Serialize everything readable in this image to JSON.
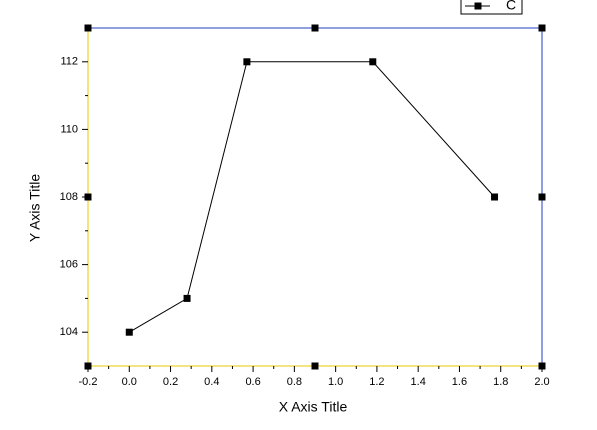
{
  "chart_data": {
    "type": "line",
    "x_label": "X Axis Title",
    "y_label": "Y Axis Title",
    "x": [
      0,
      0.28,
      0.57,
      1.18,
      1.77
    ],
    "series": [
      {
        "name": "C",
        "color": "#000000",
        "values": [
          104,
          105,
          112,
          112,
          108
        ]
      }
    ],
    "xlim": [
      -0.2,
      2.0
    ],
    "xticks": [
      -0.2,
      {
        "value": 0,
        "label": "0.0"
      },
      0.2,
      0.4,
      0.6,
      0.8,
      {
        "value": 1,
        "label": "1.0"
      },
      1.2,
      1.4,
      1.6,
      1.8,
      {
        "value": 2,
        "label": "2.0"
      }
    ],
    "ylim": [
      103,
      113
    ],
    "yticks": [
      104,
      106,
      108,
      110,
      112
    ],
    "grid": false,
    "legend": "top-right"
  }
}
